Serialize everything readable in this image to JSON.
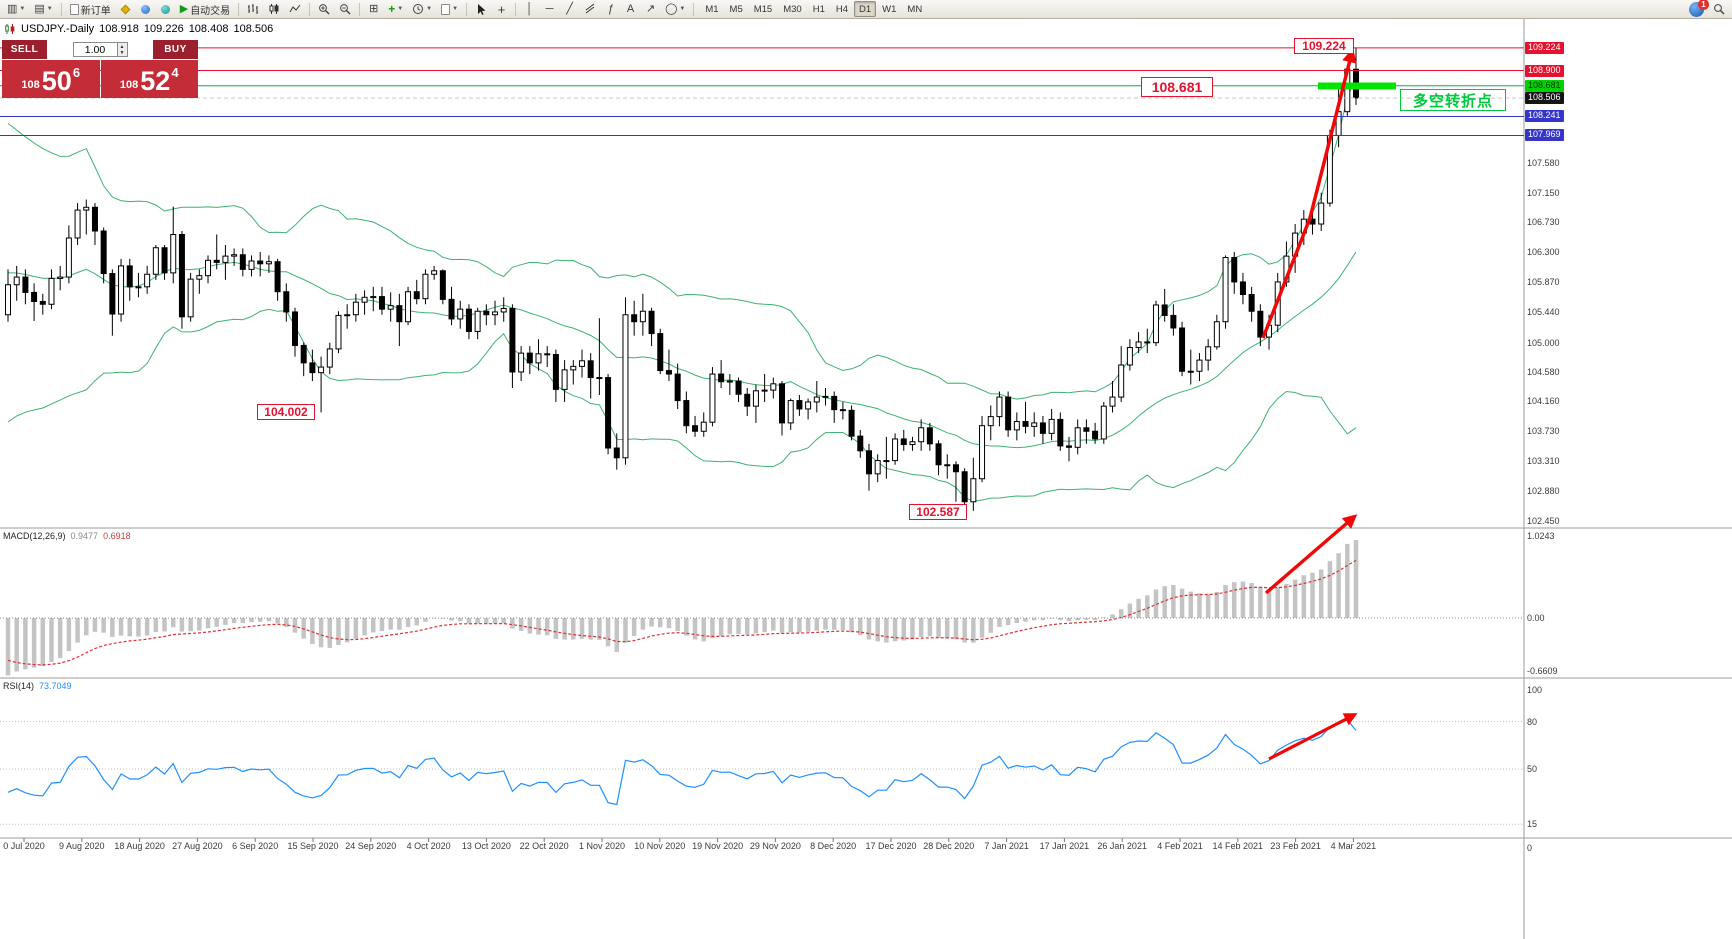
{
  "toolbar": {
    "new_order_label": "新订单",
    "autotrading_label": "自动交易",
    "timeframes": [
      "M1",
      "M5",
      "M15",
      "M30",
      "H1",
      "H4",
      "D1",
      "W1",
      "MN"
    ],
    "active_timeframe": "D1",
    "notification_count": "1"
  },
  "icons": {
    "new_chart": "▥",
    "profiles": "▤",
    "caret": "▼",
    "play": "▶",
    "plus": "+",
    "crosshair": "+",
    "vline": "│",
    "hline": "─",
    "trendline": "╱",
    "fibo": "ƒ",
    "text_tool": "A",
    "arrow_tool": "↗",
    "tile": "⊞",
    "ellipse": "◯",
    "spin_up": "▲",
    "spin_down": "▼"
  },
  "quote_bar": {
    "symbol": "USDJPY.-Daily",
    "open": "108.918",
    "high": "109.226",
    "low": "108.408",
    "close": "108.506"
  },
  "trade_panel": {
    "sell_label": "SELL",
    "buy_label": "BUY",
    "volume": "1.00",
    "sell_price": {
      "prefix": "108",
      "big": "50",
      "sup": "6"
    },
    "buy_price": {
      "prefix": "108",
      "big": "52",
      "sup": "4"
    }
  },
  "annotations": {
    "high_label": "109.224",
    "breakout_label": "108.681",
    "low1_label": "104.002",
    "low2_label": "102.587",
    "turning_point_label": "多空转折点"
  },
  "price_axis": {
    "ticks": [
      {
        "text": "107.580",
        "value": 107.58
      },
      {
        "text": "107.150",
        "value": 107.15
      },
      {
        "text": "106.730",
        "value": 106.73
      },
      {
        "text": "106.300",
        "value": 106.3
      },
      {
        "text": "105.870",
        "value": 105.87
      },
      {
        "text": "105.440",
        "value": 105.44
      },
      {
        "text": "105.000",
        "value": 105.0
      },
      {
        "text": "104.580",
        "value": 104.58
      },
      {
        "text": "104.160",
        "value": 104.16
      },
      {
        "text": "103.730",
        "value": 103.73
      },
      {
        "text": "103.310",
        "value": 103.31
      },
      {
        "text": "102.880",
        "value": 102.88
      },
      {
        "text": "102.450",
        "value": 102.45
      }
    ],
    "badges": [
      {
        "text": "109.224",
        "value": 109.224,
        "bg": "#e8112d",
        "fg": "#ffffff"
      },
      {
        "text": "108.900",
        "value": 108.9,
        "bg": "#e8112d",
        "fg": "#ffffff"
      },
      {
        "text": "108.681",
        "value": 108.681,
        "bg": "#00d200",
        "fg": "#00320a"
      },
      {
        "text": "108.506",
        "value": 108.506,
        "bg": "#141414",
        "fg": "#ffffff"
      },
      {
        "text": "108.241",
        "value": 108.241,
        "bg": "#3535cc",
        "fg": "#ffffff"
      },
      {
        "text": "107.969",
        "value": 107.969,
        "bg": "#3535cc",
        "fg": "#ffffff"
      }
    ]
  },
  "macd_panel": {
    "label": "MACD(12,26,9)",
    "main_value": "0.9477",
    "signal_value": "0.6918",
    "axis": [
      {
        "text": "1.0243",
        "value": 1.0243
      },
      {
        "text": "0.00",
        "value": 0
      },
      {
        "text": "-0.6609",
        "value": -0.6609
      }
    ]
  },
  "rsi_panel": {
    "label": "RSI(14)",
    "value": "73.7049",
    "levels": [
      {
        "text": "100",
        "value": 100
      },
      {
        "text": "80",
        "value": 80
      },
      {
        "text": "50",
        "value": 50
      },
      {
        "text": "15",
        "value": 15
      },
      {
        "text": "0",
        "value": 0
      }
    ]
  },
  "chart_data": {
    "type": "candlestick",
    "symbol": "USDJPY",
    "period": "Daily",
    "ohlc_last_quote": {
      "open": 108.918,
      "high": 109.226,
      "low": 108.408,
      "close": 108.506
    },
    "x_axis_labels": [
      "0 Jul 2020",
      "9 Aug 2020",
      "18 Aug 2020",
      "27 Aug 2020",
      "6 Sep 2020",
      "15 Sep 2020",
      "24 Sep 2020",
      "4 Oct 2020",
      "13 Oct 2020",
      "22 Oct 2020",
      "1 Nov 2020",
      "10 Nov 2020",
      "19 Nov 2020",
      "29 Nov 2020",
      "8 Dec 2020",
      "17 Dec 2020",
      "28 Dec 2020",
      "7 Jan 2021",
      "17 Jan 2021",
      "26 Jan 2021",
      "4 Feb 2021",
      "14 Feb 2021",
      "23 Feb 2021",
      "4 Mar 2021"
    ],
    "price_line_levels": {
      "red": [
        109.224,
        108.9
      ],
      "green": [
        108.681
      ],
      "blue": [
        108.241,
        107.969
      ]
    },
    "bollinger": {
      "period": 20,
      "deviation": 2
    },
    "macd": {
      "fast": 12,
      "slow": 26,
      "signal": 9,
      "last_main": 0.9477,
      "last_signal": 0.6918,
      "axis_max": 1.0243,
      "axis_min": -0.6609
    },
    "rsi": {
      "period": 14,
      "last": 73.7049,
      "levels": [
        80,
        50,
        15
      ]
    },
    "ohlc": [
      [
        105.4,
        106.05,
        105.3,
        105.83
      ],
      [
        105.83,
        106.1,
        105.6,
        105.94
      ],
      [
        105.94,
        106.05,
        105.55,
        105.72
      ],
      [
        105.72,
        105.85,
        105.31,
        105.59
      ],
      [
        105.59,
        105.7,
        105.4,
        105.55
      ],
      [
        105.55,
        106.05,
        105.48,
        105.92
      ],
      [
        105.92,
        106.1,
        105.75,
        105.94
      ],
      [
        105.94,
        106.68,
        105.85,
        106.5
      ],
      [
        106.5,
        107.0,
        106.4,
        106.9
      ],
      [
        106.9,
        107.05,
        106.55,
        106.94
      ],
      [
        106.94,
        107.0,
        106.4,
        106.6
      ],
      [
        106.6,
        106.65,
        105.85,
        105.99
      ],
      [
        105.99,
        106.05,
        105.1,
        105.41
      ],
      [
        105.41,
        106.2,
        105.3,
        106.1
      ],
      [
        106.1,
        106.2,
        105.6,
        105.8
      ],
      [
        105.8,
        106.0,
        105.65,
        105.8
      ],
      [
        105.8,
        106.1,
        105.7,
        105.98
      ],
      [
        105.98,
        106.4,
        105.9,
        106.36
      ],
      [
        106.36,
        106.4,
        105.9,
        106.0
      ],
      [
        106.0,
        106.95,
        105.85,
        106.55
      ],
      [
        106.55,
        106.6,
        105.2,
        105.37
      ],
      [
        105.37,
        106.0,
        105.3,
        105.91
      ],
      [
        105.91,
        106.05,
        105.7,
        105.96
      ],
      [
        105.96,
        106.25,
        105.85,
        106.18
      ],
      [
        106.18,
        106.55,
        106.05,
        106.15
      ],
      [
        106.15,
        106.4,
        105.9,
        106.24
      ],
      [
        106.24,
        106.35,
        106.1,
        106.26
      ],
      [
        106.26,
        106.35,
        105.95,
        106.05
      ],
      [
        106.05,
        106.25,
        105.95,
        106.17
      ],
      [
        106.17,
        106.3,
        105.95,
        106.13
      ],
      [
        106.13,
        106.25,
        106.0,
        106.16
      ],
      [
        106.16,
        106.2,
        105.6,
        105.73
      ],
      [
        105.73,
        105.85,
        105.3,
        105.44
      ],
      [
        105.44,
        105.5,
        104.8,
        104.96
      ],
      [
        104.96,
        105.0,
        104.52,
        104.71
      ],
      [
        104.71,
        104.9,
        104.45,
        104.57
      ],
      [
        104.57,
        104.8,
        104.0,
        104.65
      ],
      [
        104.65,
        105.0,
        104.55,
        104.91
      ],
      [
        104.91,
        105.45,
        104.85,
        105.39
      ],
      [
        105.39,
        105.55,
        105.2,
        105.4
      ],
      [
        105.4,
        105.7,
        105.3,
        105.58
      ],
      [
        105.58,
        105.75,
        105.4,
        105.65
      ],
      [
        105.65,
        105.8,
        105.45,
        105.66
      ],
      [
        105.66,
        105.8,
        105.4,
        105.48
      ],
      [
        105.48,
        105.72,
        105.3,
        105.53
      ],
      [
        105.53,
        105.7,
        104.95,
        105.3
      ],
      [
        105.3,
        105.8,
        105.25,
        105.73
      ],
      [
        105.73,
        105.9,
        105.55,
        105.63
      ],
      [
        105.63,
        106.05,
        105.55,
        105.98
      ],
      [
        105.98,
        106.1,
        105.9,
        106.03
      ],
      [
        106.03,
        106.05,
        105.55,
        105.62
      ],
      [
        105.62,
        105.8,
        105.25,
        105.34
      ],
      [
        105.34,
        105.6,
        105.2,
        105.48
      ],
      [
        105.48,
        105.55,
        105.05,
        105.16
      ],
      [
        105.16,
        105.5,
        105.05,
        105.45
      ],
      [
        105.45,
        105.55,
        105.25,
        105.4
      ],
      [
        105.4,
        105.6,
        105.25,
        105.44
      ],
      [
        105.44,
        105.65,
        105.3,
        105.49
      ],
      [
        105.49,
        105.55,
        104.35,
        104.58
      ],
      [
        104.58,
        104.95,
        104.45,
        104.85
      ],
      [
        104.85,
        104.95,
        104.55,
        104.71
      ],
      [
        104.71,
        105.05,
        104.6,
        104.84
      ],
      [
        104.84,
        104.95,
        104.65,
        104.83
      ],
      [
        104.83,
        104.9,
        104.15,
        104.33
      ],
      [
        104.33,
        104.75,
        104.15,
        104.61
      ],
      [
        104.61,
        104.75,
        104.4,
        104.66
      ],
      [
        104.66,
        104.9,
        104.5,
        104.74
      ],
      [
        104.74,
        104.85,
        104.2,
        104.5
      ],
      [
        104.5,
        105.35,
        104.25,
        104.5
      ],
      [
        104.5,
        104.55,
        103.4,
        103.49
      ],
      [
        103.49,
        103.7,
        103.18,
        103.35
      ],
      [
        103.35,
        105.65,
        103.25,
        105.4
      ],
      [
        105.4,
        105.6,
        105.1,
        105.3
      ],
      [
        105.3,
        105.7,
        105.1,
        105.45
      ],
      [
        105.45,
        105.5,
        104.95,
        105.13
      ],
      [
        105.13,
        105.2,
        104.55,
        104.6
      ],
      [
        104.6,
        104.9,
        104.45,
        104.55
      ],
      [
        104.55,
        104.7,
        104.05,
        104.17
      ],
      [
        104.17,
        104.3,
        103.7,
        103.81
      ],
      [
        103.81,
        103.95,
        103.65,
        103.73
      ],
      [
        103.73,
        104.0,
        103.65,
        103.86
      ],
      [
        103.86,
        104.65,
        103.8,
        104.55
      ],
      [
        104.55,
        104.75,
        104.35,
        104.44
      ],
      [
        104.44,
        104.55,
        104.25,
        104.45
      ],
      [
        104.45,
        104.5,
        104.15,
        104.26
      ],
      [
        104.26,
        104.35,
        103.95,
        104.09
      ],
      [
        104.09,
        104.4,
        103.85,
        104.31
      ],
      [
        104.31,
        104.55,
        104.15,
        104.32
      ],
      [
        104.32,
        104.5,
        104.2,
        104.41
      ],
      [
        104.41,
        104.45,
        103.67,
        103.85
      ],
      [
        103.85,
        104.2,
        103.75,
        104.17
      ],
      [
        104.17,
        104.25,
        103.95,
        104.05
      ],
      [
        104.05,
        104.2,
        103.9,
        104.15
      ],
      [
        104.15,
        104.45,
        104.0,
        104.22
      ],
      [
        104.22,
        104.35,
        104.1,
        104.23
      ],
      [
        104.23,
        104.3,
        103.85,
        104.04
      ],
      [
        104.04,
        104.15,
        103.9,
        104.03
      ],
      [
        104.03,
        104.1,
        103.6,
        103.66
      ],
      [
        103.66,
        103.75,
        103.35,
        103.45
      ],
      [
        103.45,
        103.55,
        102.88,
        103.12
      ],
      [
        103.12,
        103.4,
        103.0,
        103.31
      ],
      [
        103.31,
        103.65,
        103.05,
        103.31
      ],
      [
        103.31,
        103.7,
        103.25,
        103.62
      ],
      [
        103.62,
        103.75,
        103.45,
        103.54
      ],
      [
        103.54,
        103.65,
        103.45,
        103.58
      ],
      [
        103.58,
        103.9,
        103.45,
        103.78
      ],
      [
        103.78,
        103.85,
        103.45,
        103.55
      ],
      [
        103.55,
        103.6,
        103.1,
        103.25
      ],
      [
        103.25,
        103.4,
        103.05,
        103.25
      ],
      [
        103.25,
        103.3,
        102.72,
        103.15
      ],
      [
        103.15,
        103.2,
        102.6,
        102.72
      ],
      [
        102.72,
        103.35,
        102.59,
        103.05
      ],
      [
        103.05,
        103.95,
        103.0,
        103.81
      ],
      [
        103.81,
        104.1,
        103.6,
        103.94
      ],
      [
        103.94,
        104.3,
        103.8,
        104.22
      ],
      [
        104.22,
        104.3,
        103.65,
        103.75
      ],
      [
        103.75,
        104.0,
        103.6,
        103.87
      ],
      [
        103.87,
        104.15,
        103.7,
        103.8
      ],
      [
        103.8,
        104.0,
        103.65,
        103.85
      ],
      [
        103.85,
        103.95,
        103.55,
        103.7
      ],
      [
        103.7,
        104.05,
        103.6,
        103.9
      ],
      [
        103.9,
        104.0,
        103.45,
        103.52
      ],
      [
        103.52,
        103.65,
        103.3,
        103.5
      ],
      [
        103.5,
        103.9,
        103.4,
        103.78
      ],
      [
        103.78,
        103.9,
        103.55,
        103.73
      ],
      [
        103.73,
        103.85,
        103.55,
        103.62
      ],
      [
        103.62,
        104.15,
        103.55,
        104.09
      ],
      [
        104.09,
        104.45,
        104.0,
        104.22
      ],
      [
        104.22,
        104.95,
        104.15,
        104.68
      ],
      [
        104.68,
        105.05,
        104.6,
        104.93
      ],
      [
        104.93,
        105.15,
        104.85,
        105.01
      ],
      [
        105.01,
        105.2,
        104.85,
        105.0
      ],
      [
        105.0,
        105.6,
        104.95,
        105.54
      ],
      [
        105.54,
        105.77,
        105.3,
        105.39
      ],
      [
        105.39,
        105.55,
        105.1,
        105.21
      ],
      [
        105.21,
        105.3,
        104.52,
        104.59
      ],
      [
        104.59,
        104.9,
        104.4,
        104.59
      ],
      [
        104.59,
        104.85,
        104.45,
        104.75
      ],
      [
        104.75,
        105.05,
        104.6,
        104.94
      ],
      [
        104.94,
        105.4,
        104.9,
        105.3
      ],
      [
        105.3,
        106.25,
        105.2,
        106.22
      ],
      [
        106.22,
        106.3,
        105.7,
        105.87
      ],
      [
        105.87,
        106.0,
        105.55,
        105.69
      ],
      [
        105.69,
        105.8,
        105.3,
        105.45
      ],
      [
        105.45,
        105.55,
        104.95,
        105.08
      ],
      [
        105.08,
        105.4,
        104.9,
        105.25
      ],
      [
        105.25,
        106.0,
        105.15,
        105.87
      ],
      [
        105.87,
        106.45,
        105.8,
        106.24
      ],
      [
        106.24,
        106.7,
        106.0,
        106.57
      ],
      [
        106.57,
        106.9,
        106.4,
        106.77
      ],
      [
        106.77,
        106.95,
        106.55,
        106.7
      ],
      [
        106.7,
        107.15,
        106.6,
        107.0
      ],
      [
        107.0,
        108.05,
        106.95,
        107.97
      ],
      [
        107.97,
        108.63,
        107.8,
        108.31
      ],
      [
        108.31,
        108.95,
        108.25,
        108.92
      ],
      [
        108.918,
        109.226,
        108.408,
        108.506
      ]
    ]
  }
}
